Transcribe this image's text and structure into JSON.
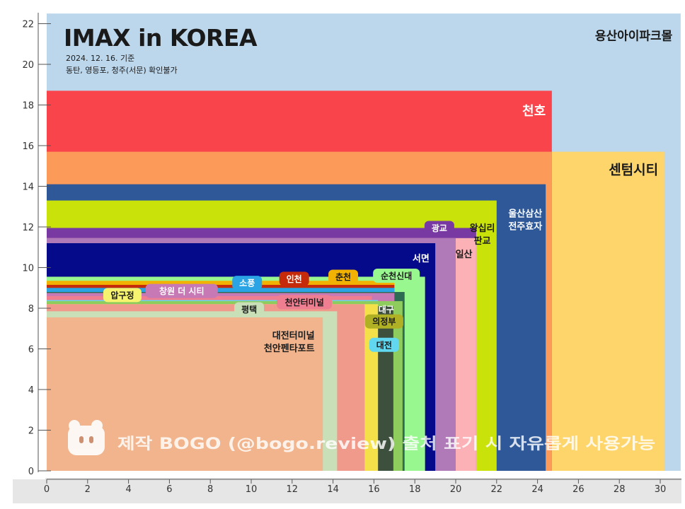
{
  "chart_data": {
    "type": "nested-rectangles",
    "title": "IMAX in KOREA",
    "subtitle_lines": [
      "2024. 12. 16. 기준",
      "동탄, 영등포, 청주(서문) 확인불가"
    ],
    "xlim": [
      0,
      30.5
    ],
    "ylim": [
      0,
      22.5
    ],
    "x_ticks": [
      0,
      2,
      4,
      6,
      8,
      10,
      12,
      14,
      16,
      18,
      20,
      22,
      24,
      26,
      28,
      30
    ],
    "y_ticks": [
      0,
      2,
      4,
      6,
      8,
      10,
      12,
      14,
      16,
      18,
      20,
      22
    ],
    "screens": [
      {
        "name": "용산아이파크몰",
        "width": 31.0,
        "height": 22.5,
        "color": "#bcd7ec",
        "label_color": "#1a1a1a",
        "label_x": 30.6,
        "label_y": 21.2,
        "label_anchor": "end",
        "label_lines": [
          "용산아이파크몰"
        ],
        "label_size": 17
      },
      {
        "name": "센텀시티",
        "width": 30.2,
        "height": 15.7,
        "color": "#fdd56b",
        "label_color": "#1a1a1a",
        "label_x": 29.9,
        "label_y": 14.6,
        "label_anchor": "end",
        "label_lines": [
          "센텀시티"
        ],
        "label_size": 19
      },
      {
        "name": "천호",
        "width": 24.7,
        "height": 18.7,
        "color": "#f8444a",
        "label_color": "#ffffff",
        "label_x": 24.4,
        "label_y": 17.5,
        "label_anchor": "end",
        "label_lines": [
          "천호"
        ],
        "label_size": 18
      },
      {
        "name": "",
        "width": 24.7,
        "height": 15.7,
        "color": "#fc9a59",
        "label_lines": []
      },
      {
        "name": "울산삼산 전주효자",
        "width": 24.4,
        "height": 14.1,
        "color": "#2f5899",
        "label_color": "#ffffff",
        "label_x": 23.4,
        "label_y": 12.5,
        "label_anchor": "middle",
        "label_lines": [
          "울산삼산",
          "전주효자"
        ],
        "label_size": 13
      },
      {
        "name": "왕십리 판교",
        "width": 22.0,
        "height": 13.3,
        "color": "#c9e20a",
        "label_color": "#1a1a1a",
        "label_x": 21.3,
        "label_y": 11.8,
        "label_anchor": "middle",
        "label_lines": [
          "왕십리",
          "판교"
        ],
        "label_size": 13
      },
      {
        "name": "광교",
        "width": 21.0,
        "height": 11.95,
        "color": "#7839a2",
        "label_color": "#ffffff",
        "label_lines": [
          "광교"
        ]
      },
      {
        "name": "일산",
        "width": 21.0,
        "height": 11.45,
        "color": "#fbb1b6",
        "label_color": "#1a1a1a",
        "label_x": 20.4,
        "label_y": 10.5,
        "label_anchor": "middle",
        "label_lines": [
          "일산"
        ],
        "label_size": 13
      },
      {
        "name": "",
        "width": 20.0,
        "height": 11.45,
        "color": "#b07ab8",
        "label_lines": []
      },
      {
        "name": "서면",
        "width": 19.0,
        "height": 11.2,
        "color": "#050a8b",
        "label_color": "#ffffff",
        "label_x": 18.3,
        "label_y": 10.3,
        "label_anchor": "middle",
        "label_lines": [
          "서면"
        ],
        "label_size": 13
      },
      {
        "name": "순천신대",
        "width": 18.5,
        "height": 9.55,
        "color": "#98f78f",
        "label_color": "#1a1a1a",
        "label_lines": [
          "순천신대"
        ]
      },
      {
        "name": "춘천",
        "width": 17.0,
        "height": 9.35,
        "color": "#f2b204",
        "label_color": "#1a1a1a",
        "label_lines": [
          "춘천"
        ]
      },
      {
        "name": "인천",
        "width": 17.0,
        "height": 9.15,
        "color": "#c52b0a",
        "label_color": "#ffffff",
        "label_lines": [
          "인천"
        ]
      },
      {
        "name": "소풍",
        "width": 17.0,
        "height": 9.0,
        "color": "#2aa4e4",
        "label_color": "#ffffff",
        "label_lines": [
          "소풍"
        ]
      },
      {
        "name": "대구",
        "width": 17.5,
        "height": 8.8,
        "color": "#2d6b52",
        "label_color": "#ffffff",
        "label_x": 16.6,
        "label_y": 7.8,
        "label_anchor": "middle",
        "label_lines": [
          "대구"
        ],
        "label_size": 12
      },
      {
        "name": "창원 더 시티",
        "width": 17.0,
        "height": 8.75,
        "color": "#c679b4",
        "label_color": "#ffffff",
        "label_lines": [
          "창원 더 시티"
        ]
      },
      {
        "name": "의정부",
        "width": 17.0,
        "height": 8.3,
        "color": "#b0b025",
        "label_color": "#1a1a1a",
        "label_lines": [
          "의정부"
        ]
      },
      {
        "name": "압구정",
        "width": 15.6,
        "height": 8.55,
        "color": "#f6f36e",
        "label_color": "#1a1a1a",
        "label_lines": [
          "압구정"
        ]
      },
      {
        "name": "천안터미널",
        "width": 15.9,
        "height": 8.6,
        "color": "#ef7e90",
        "label_color": "#1a1a1a",
        "label_lines": [
          "천안터미널"
        ]
      },
      {
        "name": "대전",
        "width": 16.2,
        "height": 8.4,
        "color": "#62d8f0",
        "label_color": "#1a1a1a",
        "label_lines": [
          "대전"
        ]
      },
      {
        "name": "",
        "width": 17.4,
        "height": 8.35,
        "color": "#8fcc5e",
        "label_lines": []
      },
      {
        "name": "",
        "width": 16.95,
        "height": 8.1,
        "color": "#3d4f3d",
        "label_lines": []
      },
      {
        "name": "",
        "width": 16.2,
        "height": 8.2,
        "color": "#f4e049",
        "label_lines": []
      },
      {
        "name": "",
        "width": 15.55,
        "height": 8.2,
        "color": "#ef9a8b",
        "label_lines": []
      },
      {
        "name": "평택",
        "width": 14.2,
        "height": 7.85,
        "color": "#c8dfb8",
        "label_color": "#1a1a1a",
        "label_lines": [
          "평택"
        ]
      },
      {
        "name": "대전터미널 천안펜타포트",
        "width": 13.5,
        "height": 7.55,
        "color": "#f2b48c",
        "label_color": "#1a1a1a",
        "label_x": 13.1,
        "label_y": 6.5,
        "label_anchor": "end",
        "label_lines": [
          "대전터미널",
          "천안펜타포트"
        ],
        "label_size": 13
      }
    ],
    "badges": [
      {
        "text": "광교",
        "x": 19.2,
        "y": 11.95,
        "color": "#7839a2",
        "text_color": "#ffffff"
      },
      {
        "text": "순천신대",
        "x": 17.1,
        "y": 9.6,
        "color": "#98f78f",
        "text_color": "#1a1a1a"
      },
      {
        "text": "춘천",
        "x": 14.5,
        "y": 9.55,
        "color": "#f2b204",
        "text_color": "#1a1a1a"
      },
      {
        "text": "인천",
        "x": 12.1,
        "y": 9.45,
        "color": "#c52b0a",
        "text_color": "#ffffff"
      },
      {
        "text": "소풍",
        "x": 9.8,
        "y": 9.25,
        "color": "#2aa4e4",
        "text_color": "#ffffff"
      },
      {
        "text": "창원 더 시티",
        "x": 6.6,
        "y": 8.85,
        "color": "#c679b4",
        "text_color": "#ffffff"
      },
      {
        "text": "압구정",
        "x": 3.7,
        "y": 8.65,
        "color": "#f6f36e",
        "text_color": "#1a1a1a"
      },
      {
        "text": "천안터미널",
        "x": 12.6,
        "y": 8.3,
        "color": "#ef7e90",
        "text_color": "#1a1a1a"
      },
      {
        "text": "평택",
        "x": 9.9,
        "y": 7.95,
        "color": "#c8dfb8",
        "text_color": "#1a1a1a"
      },
      {
        "text": "의정부",
        "x": 16.5,
        "y": 7.35,
        "color": "#b0b025",
        "text_color": "#1a1a1a"
      },
      {
        "text": "대전",
        "x": 16.5,
        "y": 6.2,
        "color": "#62d8f0",
        "text_color": "#1a1a1a"
      }
    ]
  },
  "watermark": {
    "text": "제작 BOGO (@bogo.review) 출처 표기 시 자유롭게 사용가능",
    "icon": "bear-logo-icon"
  }
}
